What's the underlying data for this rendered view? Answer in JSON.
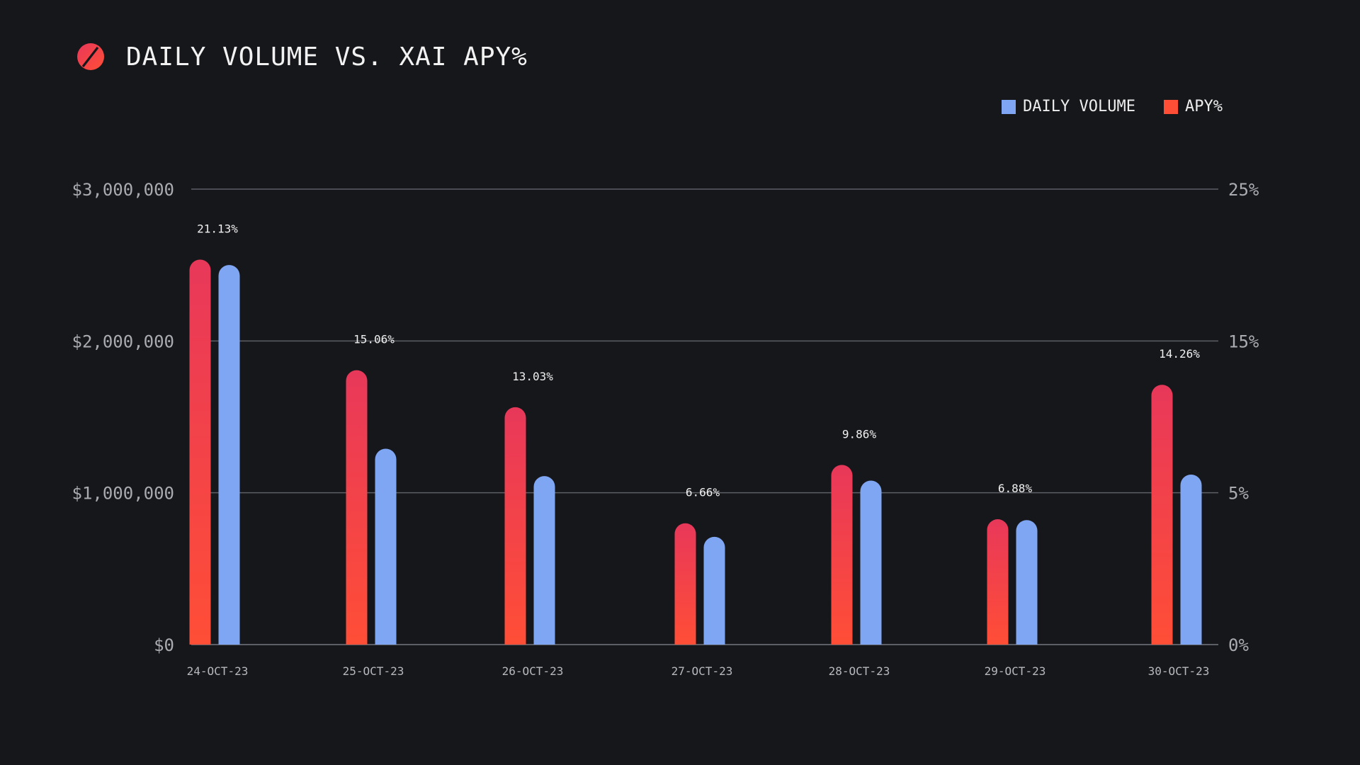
{
  "title": "DAILY VOLUME VS. XAI APY%",
  "legend": {
    "daily_volume": "DAILY VOLUME",
    "apy": "APY%"
  },
  "colors": {
    "background": "#16171b",
    "volume": "#7fa6f2",
    "apy_top": "#e8385a",
    "apy_bottom": "#ff4e36",
    "gridline": "#5d5f66",
    "axis_text": "#a9abb1"
  },
  "chart_data": {
    "type": "bar",
    "title": "DAILY VOLUME VS. XAI APY%",
    "categories": [
      "24-OCT-23",
      "25-OCT-23",
      "26-OCT-23",
      "27-OCT-23",
      "28-OCT-23",
      "29-OCT-23",
      "30-OCT-23"
    ],
    "series": [
      {
        "name": "APY%",
        "axis": "right",
        "values": [
          21.13,
          15.06,
          13.03,
          6.66,
          9.86,
          6.88,
          14.26
        ],
        "labels": [
          "21.13%",
          "15.06%",
          "13.03%",
          "6.66%",
          "9.86%",
          "6.88%",
          "14.26%"
        ]
      },
      {
        "name": "DAILY VOLUME",
        "axis": "left",
        "values": [
          2500000,
          1290000,
          1110000,
          710000,
          1080000,
          820000,
          1120000
        ]
      }
    ],
    "left_axis": {
      "range": [
        0,
        3000000
      ],
      "ticks": [
        0,
        1000000,
        2000000,
        3000000
      ],
      "tick_labels": [
        "$0",
        "$1,000,000",
        "$2,000,000",
        "$3,000,000"
      ]
    },
    "right_axis": {
      "range": [
        0,
        25
      ],
      "ticks": [
        0,
        5,
        15,
        25
      ],
      "tick_labels": [
        "0%",
        "5%",
        "15%",
        "25%"
      ]
    },
    "legend_position": "top-right",
    "grid": true
  }
}
